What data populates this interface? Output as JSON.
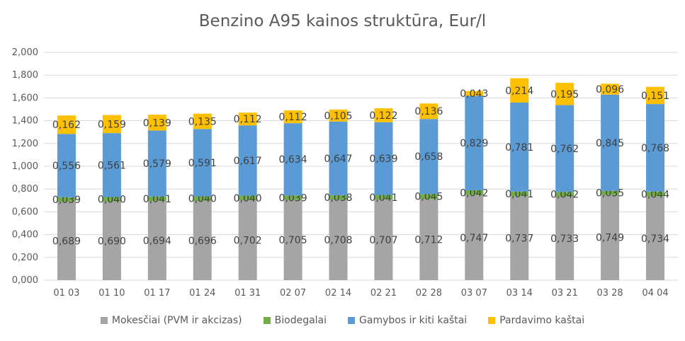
{
  "chart_data": {
    "type": "bar",
    "stacked": true,
    "title": "Benzino A95  kainos struktūra, Eur/l",
    "categories": [
      "01 03",
      "01 10",
      "01 17",
      "01 24",
      "01 31",
      "02 07",
      "02 14",
      "02 21",
      "02 28",
      "03 07",
      "03 14",
      "03 21",
      "03 28",
      "04 04"
    ],
    "ylim": [
      0,
      2.0
    ],
    "yticks": [
      "0,000",
      "0,200",
      "0,400",
      "0,600",
      "0,800",
      "1,000",
      "1,200",
      "1,400",
      "1,600",
      "1,800",
      "2,000"
    ],
    "grid": true,
    "legend_position": "bottom",
    "series": [
      {
        "name": "Mokesčiai (PVM ir akcizas)",
        "color": "#a5a5a5",
        "values": [
          0.689,
          0.69,
          0.694,
          0.696,
          0.702,
          0.705,
          0.708,
          0.707,
          0.712,
          0.747,
          0.737,
          0.733,
          0.749,
          0.734
        ],
        "labels": [
          "0,689",
          "0,690",
          "0,694",
          "0,696",
          "0,702",
          "0,705",
          "0,708",
          "0,707",
          "0,712",
          "0,747",
          "0,737",
          "0,733",
          "0,749",
          "0,734"
        ]
      },
      {
        "name": "Biodegalai",
        "color": "#70ad47",
        "values": [
          0.039,
          0.04,
          0.041,
          0.04,
          0.04,
          0.039,
          0.038,
          0.041,
          0.045,
          0.042,
          0.041,
          0.042,
          0.035,
          0.044
        ],
        "labels": [
          "0,039",
          "0,040",
          "0,041",
          "0,040",
          "0,040",
          "0,039",
          "0,038",
          "0,041",
          "0,045",
          "0,042",
          "0,041",
          "0,042",
          "0,035",
          "0,044"
        ]
      },
      {
        "name": "Gamybos ir kiti kaštai",
        "color": "#5b9bd5",
        "values": [
          0.556,
          0.561,
          0.579,
          0.591,
          0.617,
          0.634,
          0.647,
          0.639,
          0.658,
          0.829,
          0.781,
          0.762,
          0.845,
          0.768
        ],
        "labels": [
          "0,556",
          "0,561",
          "0,579",
          "0,591",
          "0,617",
          "0,634",
          "0,647",
          "0,639",
          "0,658",
          "0,829",
          "0,781",
          "0,762",
          "0,845",
          "0,768"
        ]
      },
      {
        "name": "Pardavimo kaštai",
        "color": "#ffc000",
        "values": [
          0.162,
          0.159,
          0.139,
          0.135,
          0.112,
          0.112,
          0.105,
          0.122,
          0.136,
          0.043,
          0.214,
          0.195,
          0.096,
          0.151
        ],
        "labels": [
          "0,162",
          "0,159",
          "0,139",
          "0,135",
          "0,112",
          "0,112",
          "0,105",
          "0,122",
          "0,136",
          "0,043",
          "0,214",
          "0,195",
          "0,096",
          "0,151"
        ]
      }
    ]
  }
}
